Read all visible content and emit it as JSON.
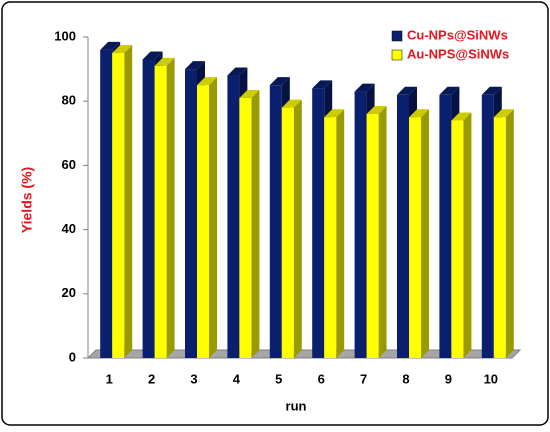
{
  "chart_data": {
    "type": "bar3d",
    "categories": [
      "1",
      "2",
      "3",
      "4",
      "5",
      "6",
      "7",
      "8",
      "9",
      "10"
    ],
    "series": [
      {
        "name": "Cu-NPs@SiNWs",
        "color": "#0a1f6e",
        "values": [
          96,
          93,
          90,
          88,
          85,
          84,
          83,
          82,
          82,
          82
        ]
      },
      {
        "name": "Au-NPS@SiNWs",
        "color": "#ffff00",
        "values": [
          95,
          91,
          85,
          81,
          78,
          75,
          76,
          75,
          74,
          75
        ]
      }
    ],
    "ylim": [
      0,
      100
    ],
    "yticks": [
      0,
      20,
      40,
      60,
      80,
      100
    ],
    "xlabel": "run",
    "ylabel": "Yields (%)",
    "legend": "upper right"
  }
}
